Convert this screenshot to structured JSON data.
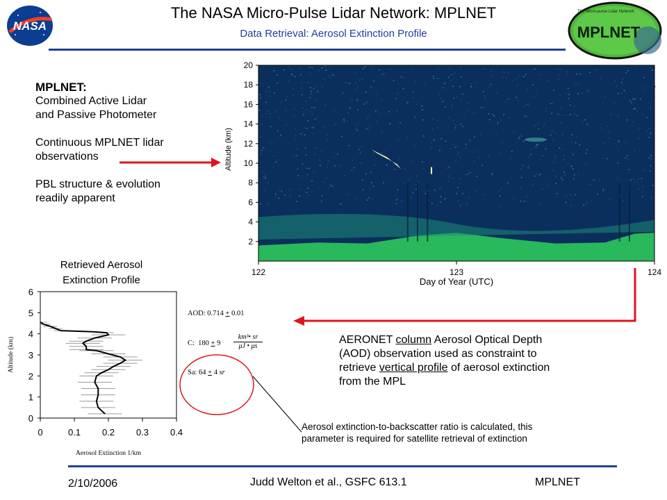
{
  "header": {
    "title": "The NASA Micro-Pulse Lidar Network:  MPLNET",
    "subtitle": "Data Retrieval: Aerosol Extinction Profile",
    "nasa_logo_text": "NASA",
    "mplnet_logo_text": "MPLNET",
    "mplnet_logo_caption": "The Micro-pulse Lidar Network"
  },
  "left_text": {
    "heading": "MPLNET:",
    "line1": "Combined Active Lidar",
    "line2": "and Passive Photometer",
    "line3": "Continuous MPLNET lidar",
    "line4": "observations",
    "line5": "PBL structure & evolution",
    "line6": "readily apparent"
  },
  "chart_data": [
    {
      "type": "heatmap",
      "title": "",
      "xlabel": "Day of Year  (UTC)",
      "ylabel": "Altitude (km)",
      "xlim": [
        122,
        124
      ],
      "ylim": [
        0,
        20
      ],
      "xticks": [
        "122",
        "123",
        "124"
      ],
      "yticks": [
        "2",
        "4",
        "6",
        "8",
        "10",
        "12",
        "14",
        "16",
        "18",
        "20"
      ],
      "colors": {
        "background": "#0b2f5c",
        "aerosol": "#2fd05a",
        "cloud": "#f4f7b0"
      }
    },
    {
      "type": "line",
      "title": "Retrieved Aerosol Extinction Profile",
      "title_line1": "Retrieved Aerosol",
      "title_line2": "Extinction Profile",
      "xlabel": "Aerosol Extinction   1/km",
      "ylabel": "Altitude (km)",
      "xlim": [
        0,
        0.4
      ],
      "ylim": [
        0,
        6
      ],
      "xticks": [
        "0",
        "0.1",
        "0.2",
        "0.3",
        "0.4"
      ],
      "yticks": [
        "0",
        "1",
        "2",
        "3",
        "4",
        "5",
        "6"
      ],
      "series": [
        {
          "x": [
            0.19,
            0.17,
            0.165,
            0.17,
            0.17,
            0.16,
            0.165,
            0.18,
            0.2,
            0.215,
            0.235,
            0.25,
            0.235,
            0.2,
            0.165,
            0.135,
            0.135,
            0.125,
            0.135,
            0.16,
            0.2,
            0.195,
            0.15,
            0.06,
            0.045,
            0.03,
            0.01,
            0.0
          ],
          "y": [
            0.2,
            0.5,
            0.8,
            1.1,
            1.4,
            1.7,
            2.0,
            2.15,
            2.3,
            2.45,
            2.6,
            2.75,
            2.9,
            3.05,
            3.2,
            3.25,
            3.4,
            3.55,
            3.65,
            3.8,
            3.95,
            4.05,
            4.1,
            4.15,
            4.25,
            4.35,
            4.45,
            4.55
          ]
        }
      ]
    }
  ],
  "annotations": {
    "aod_label": "AOD:",
    "aod_value": "0.714",
    "aod_pm": "+",
    "aod_err": "0.01",
    "c_label": "C:",
    "c_value": "180",
    "c_pm": "+",
    "c_err": "9",
    "c_units_num": "km³• sr",
    "c_units_den": "μJ • μs",
    "sa_label": "Sa:",
    "sa_value": "64",
    "sa_pm": "+",
    "sa_err": "4",
    "sa_unit": "sr"
  },
  "aeronet_text": {
    "l1a": "AERONET ",
    "l1b": "column",
    "l1c": " Aerosol Optical Depth",
    "l2": "(AOD) observation used as constraint to",
    "l3a": "retrieve ",
    "l3b": "vertical profile",
    "l3c": " of aerosol extinction",
    "l4": "from the MPL"
  },
  "note": {
    "l1": "Aerosol extinction-to-backscatter ratio is calculated, this",
    "l2": "parameter is required for satellite retrieval of extinction"
  },
  "footer": {
    "date": "2/10/2006",
    "author": "Judd Welton et al., GSFC 613.1",
    "project": "MPLNET"
  },
  "colors": {
    "rule": "#1f3f9a",
    "arrow": "#e0141e",
    "ellipse": "#e0141e",
    "subtitle": "#1f3f9a"
  }
}
